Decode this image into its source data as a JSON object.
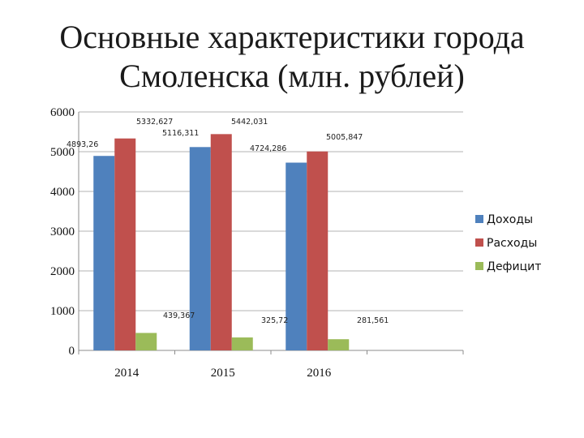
{
  "page": {
    "title_line1": "Основные характеристики города",
    "title_line2": "Смоленска (млн. рублей)"
  },
  "chart_data": {
    "type": "bar",
    "title": "Основные характеристики города Смоленска (млн. рублей)",
    "xlabel": "",
    "ylabel": "",
    "categories": [
      "2014",
      "2015",
      "2016"
    ],
    "ylim": [
      0,
      6000
    ],
    "yticks": [
      "0",
      "1000",
      "2000",
      "3000",
      "4000",
      "5000",
      "6000"
    ],
    "grid": true,
    "legend_position": "right",
    "series": [
      {
        "name": "Доходы",
        "color": "#4f81bd",
        "values": [
          4893.26,
          5116.311,
          4724.286
        ],
        "labels": [
          "4893,26",
          "5116,311",
          "4724,286"
        ]
      },
      {
        "name": "Расходы",
        "color": "#c0504d",
        "values": [
          5332.627,
          5442.031,
          5005.847
        ],
        "labels": [
          "5332,627",
          "5442,031",
          "5005,847"
        ]
      },
      {
        "name": "Дефицит",
        "color": "#9bbb59",
        "values": [
          439.367,
          325.72,
          281.561
        ],
        "labels": [
          "439,367",
          "325,72",
          "281,561"
        ]
      }
    ]
  }
}
